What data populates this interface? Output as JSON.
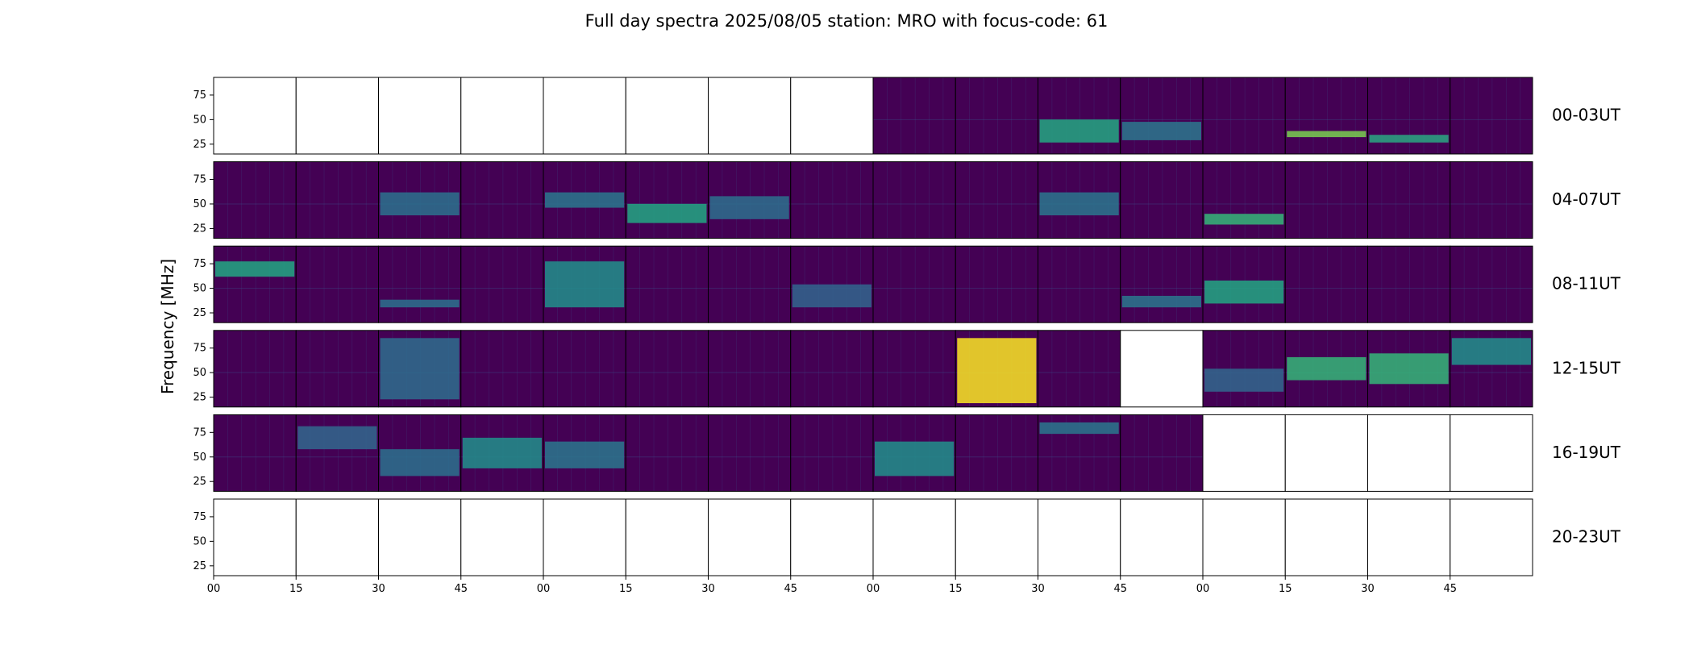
{
  "chart_data": {
    "type": "heatmap",
    "title": "Full day spectra 2025/08/05 station: MRO with focus-code: 61",
    "ylabel": "Frequency [MHz]",
    "xlabel": "",
    "ylim": [
      15,
      93
    ],
    "yticks": [
      25,
      50,
      75
    ],
    "xtick_labels": [
      "00",
      "15",
      "30",
      "45",
      "00",
      "15",
      "30",
      "45",
      "00",
      "15",
      "30",
      "45",
      "00",
      "15",
      "30",
      "45"
    ],
    "colormap": "viridis",
    "colors": {
      "low": "#440154",
      "mid": "#21918c",
      "high": "#fde725"
    },
    "rows": [
      {
        "label": "00-03UT",
        "status": [
          0,
          0,
          0,
          0,
          0,
          0,
          0,
          0,
          1,
          1,
          1,
          1,
          1,
          1,
          1,
          1
        ],
        "features": [
          [],
          [],
          [],
          [],
          [],
          [],
          [],
          [],
          [],
          [],
          [
            [
              0.15,
              0.45,
              "#23a883"
            ]
          ],
          [
            [
              0.18,
              0.42,
              "#2b788e"
            ]
          ],
          [],
          [
            [
              0.22,
              0.3,
              "#7ad151"
            ]
          ],
          [
            [
              0.15,
              0.25,
              "#2aa882"
            ]
          ],
          []
        ]
      },
      {
        "label": "04-07UT",
        "status": [
          1,
          1,
          1,
          1,
          1,
          1,
          1,
          1,
          1,
          1,
          1,
          1,
          1,
          1,
          1,
          1
        ],
        "features": [
          [],
          [],
          [
            [
              0.3,
              0.6,
              "#2c728e"
            ]
          ],
          [],
          [
            [
              0.4,
              0.6,
              "#2a788e"
            ]
          ],
          [
            [
              0.2,
              0.45,
              "#22a884"
            ]
          ],
          [
            [
              0.25,
              0.55,
              "#2d708e"
            ]
          ],
          [],
          [],
          [],
          [
            [
              0.3,
              0.6,
              "#2a778e"
            ]
          ],
          [],
          [
            [
              0.18,
              0.32,
              "#35b779"
            ]
          ],
          [],
          [],
          []
        ]
      },
      {
        "label": "08-11UT",
        "status": [
          1,
          1,
          1,
          1,
          1,
          1,
          1,
          1,
          1,
          1,
          1,
          1,
          1,
          1,
          1,
          1
        ],
        "features": [
          [
            [
              0.6,
              0.8,
              "#22a884"
            ]
          ],
          [],
          [
            [
              0.2,
              0.3,
              "#2c728e"
            ]
          ],
          [],
          [
            [
              0.2,
              0.8,
              "#21918c"
            ]
          ],
          [],
          [],
          [
            [
              0.2,
              0.5,
              "#31668e"
            ]
          ],
          [],
          [],
          [],
          [
            [
              0.2,
              0.35,
              "#2a788e"
            ]
          ],
          [
            [
              0.25,
              0.55,
              "#22a884"
            ]
          ],
          [],
          [],
          []
        ]
      },
      {
        "label": "12-15UT",
        "status": [
          1,
          1,
          1,
          1,
          1,
          1,
          1,
          1,
          1,
          1,
          1,
          0,
          1,
          1,
          1,
          1
        ],
        "features": [
          [],
          [],
          [
            [
              0.1,
              0.9,
              "#2e6f8e"
            ]
          ],
          [],
          [],
          [],
          [],
          [],
          [],
          [
            [
              0.05,
              0.9,
              "#fde725"
            ]
          ],
          [],
          [],
          [
            [
              0.2,
              0.5,
              "#31688e"
            ]
          ],
          [
            [
              0.35,
              0.65,
              "#35b779"
            ]
          ],
          [
            [
              0.3,
              0.7,
              "#35b779"
            ]
          ],
          [
            [
              0.55,
              0.9,
              "#21918c"
            ]
          ]
        ]
      },
      {
        "label": "16-19UT",
        "status": [
          1,
          1,
          1,
          1,
          1,
          1,
          1,
          1,
          1,
          1,
          1,
          1,
          0,
          0,
          0,
          0
        ],
        "features": [
          [],
          [
            [
              0.55,
              0.85,
              "#31688e"
            ]
          ],
          [
            [
              0.2,
              0.55,
              "#2c728e"
            ]
          ],
          [
            [
              0.3,
              0.7,
              "#21918c"
            ]
          ],
          [
            [
              0.3,
              0.65,
              "#2a788e"
            ]
          ],
          [],
          [],
          [],
          [
            [
              0.2,
              0.65,
              "#21918c"
            ]
          ],
          [],
          [
            [
              0.75,
              0.9,
              "#2a788e"
            ]
          ],
          [],
          [],
          [],
          [],
          []
        ]
      },
      {
        "label": "20-23UT",
        "status": [
          0,
          0,
          0,
          0,
          0,
          0,
          0,
          0,
          0,
          0,
          0,
          0,
          0,
          0,
          0,
          0
        ],
        "features": [
          [],
          [],
          [],
          [],
          [],
          [],
          [],
          [],
          [],
          [],
          [],
          [],
          [],
          [],
          [],
          []
        ]
      }
    ]
  }
}
